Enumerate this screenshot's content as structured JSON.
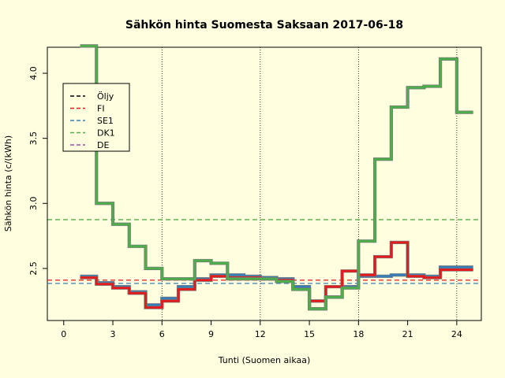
{
  "chart_data": {
    "type": "line",
    "step": true,
    "title": "Sähkön hinta Suomesta Saksaan 2017-06-18",
    "xlabel": "Tunti (Suomen aikaa)",
    "ylabel": "Sähkön hinta (c/(kWh)",
    "xlim": [
      -1,
      25.5
    ],
    "ylim": [
      2.1,
      4.2
    ],
    "xticks": [
      0,
      3,
      6,
      9,
      12,
      15,
      18,
      21,
      24
    ],
    "yticks": [
      2.5,
      3.0,
      3.5,
      4.0
    ],
    "ytick_labels": [
      "2.5",
      "3.0",
      "3.5",
      "4.0"
    ],
    "vlines": [
      6,
      12,
      18,
      24
    ],
    "grid": false,
    "legend": {
      "placement": "top-left",
      "entries": [
        {
          "label": "Öljy",
          "color": "#000000"
        },
        {
          "label": "FI",
          "color": "#E41A1C"
        },
        {
          "label": "SE1",
          "color": "#377EB8"
        },
        {
          "label": "DK1",
          "color": "#4DAF4A"
        },
        {
          "label": "DE",
          "color": "#984EA3"
        }
      ]
    },
    "averages": [
      {
        "series": "FI",
        "value": 2.41,
        "color": "#E41A1C"
      },
      {
        "series": "SE1",
        "value": 2.385,
        "color": "#377EB8"
      },
      {
        "series": "DK1",
        "value": 2.875,
        "color": "#4DAF4A"
      }
    ],
    "x": [
      1,
      2,
      3,
      4,
      5,
      6,
      7,
      8,
      9,
      10,
      11,
      12,
      13,
      14,
      15,
      16,
      17,
      18,
      19,
      20,
      21,
      22,
      23,
      24,
      25
    ],
    "series": [
      {
        "name": "SE1",
        "color": "#377EB8",
        "values": [
          2.44,
          2.39,
          2.36,
          2.32,
          2.22,
          2.27,
          2.36,
          2.42,
          2.45,
          2.45,
          2.44,
          2.43,
          2.42,
          2.36,
          2.19,
          2.28,
          2.36,
          2.44,
          2.44,
          2.45,
          2.45,
          2.44,
          2.51,
          2.51,
          2.51
        ]
      },
      {
        "name": "FI",
        "color": "#E41A1C",
        "values": [
          2.43,
          2.38,
          2.35,
          2.31,
          2.2,
          2.25,
          2.34,
          2.41,
          2.44,
          2.43,
          2.43,
          2.42,
          2.41,
          2.34,
          2.25,
          2.36,
          2.48,
          2.45,
          2.59,
          2.7,
          2.44,
          2.43,
          2.49,
          2.49,
          2.49
        ]
      },
      {
        "name": "DK1",
        "color": "#4DAF4A",
        "values": [
          4.21,
          3.0,
          2.84,
          2.67,
          2.5,
          2.42,
          2.42,
          2.56,
          2.54,
          2.42,
          2.42,
          2.42,
          2.4,
          2.34,
          2.19,
          2.28,
          2.35,
          2.71,
          3.34,
          3.74,
          3.89,
          3.9,
          4.11,
          3.7,
          3.7
        ]
      }
    ]
  }
}
